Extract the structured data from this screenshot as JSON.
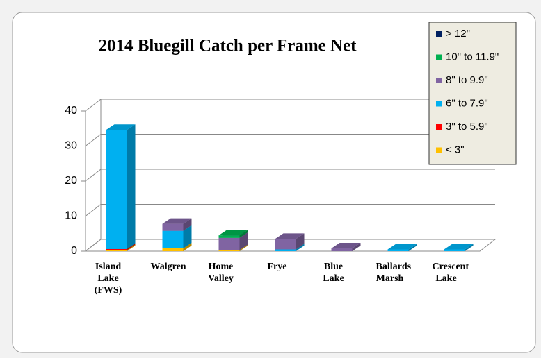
{
  "chart_data": {
    "type": "bar3d_stacked",
    "title": "2014 Bluegill Catch per Frame Net",
    "categories": [
      "Island Lake (FWS)",
      "Walgren",
      "Home Valley",
      "Frye",
      "Blue Lake",
      "Ballards Marsh",
      "Crescent Lake"
    ],
    "series": [
      {
        "name": "< 3\"",
        "color": "#ffc000",
        "values": [
          0.3,
          0.8,
          0.3,
          0,
          0,
          0,
          0
        ]
      },
      {
        "name": "3\" to 5.9\"",
        "color": "#ff0000",
        "values": [
          0.3,
          0,
          0,
          0,
          0,
          0,
          0
        ]
      },
      {
        "name": "6\" to 7.9\"",
        "color": "#00b0f0",
        "values": [
          34,
          5,
          0,
          0.5,
          0,
          0.5,
          0.5
        ]
      },
      {
        "name": "8\" to 9.9\"",
        "color": "#8064a2",
        "values": [
          0,
          2,
          3.5,
          3,
          0.8,
          0,
          0
        ]
      },
      {
        "name": "10\" to 11.9\"",
        "color": "#00b050",
        "values": [
          0,
          0,
          0.7,
          0,
          0,
          0,
          0
        ]
      },
      {
        "name": "> 12\"",
        "color": "#002060",
        "values": [
          0,
          0,
          0,
          0,
          0,
          0,
          0
        ]
      }
    ],
    "ylim": [
      0,
      40
    ],
    "yticks": [
      0,
      10,
      20,
      30,
      40
    ],
    "grid": true,
    "legend": "top-right"
  }
}
